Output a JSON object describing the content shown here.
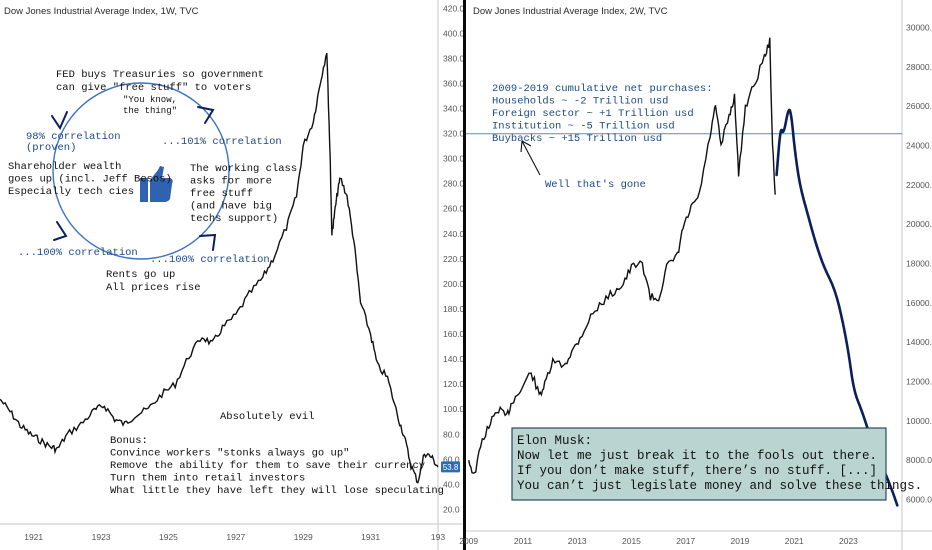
{
  "chart_data": [
    {
      "type": "line",
      "title": "Dow Jones Industrial Average Index, 1W, TVC",
      "x_ticks": [
        "1921",
        "1923",
        "1925",
        "1927",
        "1929",
        "1931",
        "193"
      ],
      "y_ticks": [
        "20.0",
        "40.0",
        "60.0",
        "80.0",
        "100.0",
        "120.0",
        "140.0",
        "160.0",
        "180.0",
        "200.0",
        "220.0",
        "240.0",
        "260.0",
        "280.0",
        "300.0",
        "320.0",
        "340.0",
        "360.0",
        "380.0",
        "400.0",
        "420.0"
      ],
      "ylim": [
        10,
        425
      ],
      "xlim": [
        1920.0,
        1933.0
      ],
      "last_value_label": "53.8",
      "series": [
        {
          "x": [
            1920.0,
            1920.3,
            1920.6,
            1920.9,
            1921.2,
            1921.5,
            1921.7,
            1922.0,
            1922.4,
            1922.8,
            1923.1,
            1923.4,
            1923.7,
            1924.0,
            1924.4,
            1924.8,
            1925.2,
            1925.6,
            1926.0,
            1926.3,
            1926.6,
            1927.0,
            1927.4,
            1927.8,
            1928.1,
            1928.5,
            1928.8,
            1929.0,
            1929.3,
            1929.5,
            1929.7,
            1929.8,
            1929.85,
            1929.9,
            1930.0,
            1930.1,
            1930.3,
            1930.5,
            1930.7,
            1931.0,
            1931.2,
            1931.5,
            1931.8,
            1932.0,
            1932.2,
            1932.4,
            1932.6,
            1932.8,
            1933.0
          ],
          "y": [
            108,
            98,
            87,
            80,
            75,
            70,
            68,
            80,
            88,
            99,
            103,
            92,
            88,
            95,
            100,
            112,
            120,
            142,
            158,
            152,
            165,
            175,
            192,
            205,
            220,
            245,
            270,
            310,
            330,
            360,
            386,
            300,
            240,
            250,
            270,
            285,
            270,
            235,
            185,
            160,
            135,
            125,
            95,
            78,
            55,
            42,
            65,
            62,
            54
          ]
        }
      ],
      "annotations": {
        "fed": "FED buys Treasuries so government\ncan give \"free stuff\" to voters",
        "you_know": "\"You know,\nthe thing\"",
        "corr_proven": "98% correlation\n(proven)",
        "corr_101": "...101% correlation",
        "shareholder": "Shareholder wealth\ngoes up (incl. Jeff Besos)\nEspecially tech cies",
        "working": "The working class\nasks for more\nfree stuff\n(and have big\ntechs support)",
        "corr_100_left": "...100% correlation",
        "corr_100_right": "...100% correlation",
        "rents": "Rents go up\nAll prices rise",
        "evil": "Absolutely evil",
        "bonus": "Bonus:\nConvince workers \"stonks always go up\"\nRemove the ability for them to save their currency\nTurn them into retail investors\nWhat little they have left they will lose speculating"
      }
    },
    {
      "type": "line",
      "title": "Dow Jones Industrial Average Index, 2W, TVC",
      "x_ticks": [
        "2009",
        "2011",
        "2013",
        "2015",
        "2017",
        "2019",
        "2021",
        "2023"
      ],
      "y_ticks": [
        "6000.0",
        "8000.0",
        "10000.0",
        "12000.0",
        "14000.0",
        "16000.0",
        "18000.0",
        "20000.0",
        "22000.0",
        "24000.0",
        "26000.0",
        "28000.0",
        "30000.0"
      ],
      "ylim": [
        4500,
        31300
      ],
      "xlim": [
        2008.9,
        2024.9
      ],
      "horizontal_line_value": 24600,
      "series": [
        {
          "name": "",
          "x": [
            2009.0,
            2009.2,
            2009.5,
            2009.8,
            2010.1,
            2010.4,
            2010.6,
            2010.9,
            2011.3,
            2011.6,
            2011.8,
            2012.1,
            2012.5,
            2012.8,
            2013.1,
            2013.5,
            2013.9,
            2014.3,
            2014.7,
            2015.0,
            2015.4,
            2015.7,
            2016.0,
            2016.3,
            2016.7,
            2016.9,
            2017.2,
            2017.5,
            2017.9,
            2018.1,
            2018.3,
            2018.6,
            2018.8,
            2018.95,
            2019.2,
            2019.5,
            2019.9,
            2020.1,
            2020.2,
            2020.3
          ],
          "y": [
            8000,
            7200,
            9000,
            9900,
            10600,
            10200,
            11000,
            11500,
            12500,
            11300,
            11800,
            13000,
            12800,
            13500,
            14200,
            15300,
            16000,
            16500,
            17000,
            17800,
            18000,
            16300,
            16200,
            17800,
            18400,
            19800,
            20800,
            21500,
            24500,
            26000,
            24000,
            25500,
            26500,
            22500,
            26000,
            27000,
            28500,
            29300,
            24000,
            21500
          ]
        },
        {
          "name": "",
          "x": [
            2020.35,
            2020.5,
            2020.6,
            2020.8,
            2020.9,
            2021.0,
            2021.2,
            2021.5,
            2021.8,
            2022.1,
            2022.5,
            2022.8,
            2023.0,
            2023.2,
            2023.5,
            2023.8,
            2024.1,
            2024.4,
            2024.6,
            2024.8
          ],
          "y": [
            22500,
            25000,
            24500,
            26000,
            25500,
            24000,
            22000,
            20500,
            19000,
            17800,
            16700,
            15000,
            13500,
            11500,
            10500,
            9200,
            8100,
            7200,
            6500,
            5700
          ]
        }
      ],
      "annotations": {
        "purchases": "2009-2019 cumulative net purchases:\nHouseholds ~ -2 Trillion usd\nForeign sector ~ +1 Trillion usd\nInstitution ~ -5 Trillion usd\nBuybacks ~ +15 Trillion usd",
        "gone": "Well that's gone",
        "musk": "Elon Musk:\nNow let me just break it to the fools out there.\nIf you don’t make stuff, there’s no stuff. [...]\nYou can’t just legislate money and solve these things."
      }
    }
  ],
  "colors": {
    "price_line": "#111111",
    "projection_line": "#0b1f5c",
    "blue_text": "#1b4a8a",
    "circle": "#3d72c4",
    "divider": "#0a0a0a",
    "badge": "#2b6cb5",
    "quote_bg": "#b9d4d1",
    "hline": "#5a8fb5",
    "thumbs": "#2f62b0"
  },
  "icons": {
    "thumbs_up": "thumbs-up-icon"
  }
}
